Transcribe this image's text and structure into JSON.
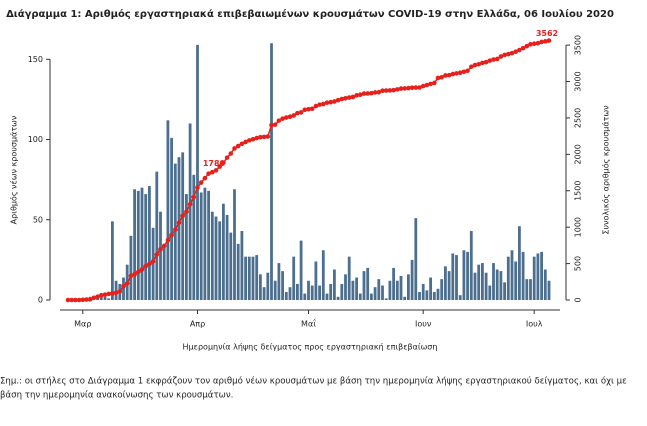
{
  "chart_data": {
    "type": "bar-line",
    "title": "Διάγραμμα 1: Αριθμός εργαστηριακά επιβεβαιωμένων κρουσμάτων COVID-19 στην Ελλάδα, 06 Ιουλίου 2020",
    "x_label": "Ημερομηνία λήψης δείγματος προς εργαστηριακή επιβεβαίωση",
    "y_label": "Αριθμός νέων κρουσμάτων",
    "y2_label": "Συνολικός αριθμός κρουσμάτων",
    "categories": [
      null,
      null,
      null,
      null,
      "Μαρ",
      null,
      null,
      null,
      null,
      null,
      null,
      null,
      null,
      null,
      null,
      null,
      null,
      null,
      null,
      null,
      null,
      null,
      null,
      null,
      null,
      null,
      null,
      null,
      null,
      null,
      null,
      null,
      null,
      null,
      null,
      "Απρ",
      null,
      null,
      null,
      null,
      null,
      null,
      null,
      null,
      null,
      null,
      null,
      null,
      null,
      null,
      null,
      null,
      null,
      null,
      null,
      null,
      null,
      null,
      null,
      null,
      null,
      null,
      null,
      null,
      null,
      "Μαΐ",
      null,
      null,
      null,
      null,
      null,
      null,
      null,
      null,
      null,
      null,
      null,
      null,
      null,
      null,
      null,
      null,
      null,
      null,
      null,
      null,
      null,
      null,
      null,
      null,
      null,
      null,
      null,
      null,
      null,
      null,
      "Ιουν",
      null,
      null,
      null,
      null,
      null,
      null,
      null,
      null,
      null,
      null,
      null,
      null,
      null,
      null,
      null,
      null,
      null,
      null,
      null,
      null,
      null,
      null,
      null,
      null,
      null,
      null,
      null,
      null,
      null,
      "Ιουλ",
      null,
      null,
      null,
      null
    ],
    "ylim": [
      0,
      167
    ],
    "yticks": [
      0,
      50,
      100,
      150
    ],
    "y2lim": [
      0,
      3680
    ],
    "y2ticks": [
      0,
      500,
      1000,
      1500,
      2000,
      2500,
      3000,
      3500
    ],
    "series": [
      {
        "type": "bar",
        "color": "#4d6f8f",
        "values": [
          0,
          0,
          1,
          1,
          1,
          1,
          2,
          1,
          3,
          3,
          2,
          1,
          49,
          12,
          10,
          14,
          22,
          40,
          69,
          68,
          70,
          66,
          71,
          45,
          80,
          55,
          35,
          112,
          101,
          85,
          89,
          92,
          66,
          110,
          78,
          159,
          67,
          70,
          68,
          55,
          52,
          49,
          60,
          53,
          42,
          69,
          35,
          43,
          27,
          27,
          27,
          28,
          16,
          8,
          17,
          160,
          12,
          23,
          18,
          5,
          8,
          27,
          10,
          37,
          4,
          12,
          9,
          24,
          9,
          31,
          4,
          10,
          19,
          2,
          10,
          16,
          27,
          12,
          14,
          4,
          18,
          20,
          4,
          8,
          13,
          9,
          1,
          12,
          20,
          12,
          15,
          2,
          16,
          25,
          51,
          5,
          10,
          6,
          14,
          5,
          7,
          13,
          21,
          18,
          29,
          28,
          3,
          31,
          30,
          43,
          17,
          22,
          23,
          17,
          9,
          23,
          19,
          18,
          11,
          27,
          31,
          24,
          46,
          30,
          13,
          13,
          27,
          29,
          30,
          19,
          12
        ]
      },
      {
        "type": "line",
        "axis": "y2",
        "color": "#e8201c",
        "values": [
          0,
          0,
          0,
          0,
          3,
          7,
          9,
          31,
          45,
          66,
          73,
          84,
          89,
          99,
          117,
          190,
          228,
          331,
          352,
          387,
          418,
          464,
          495,
          530,
          624,
          695,
          743,
          821,
          892,
          966,
          1061,
          1156,
          1212,
          1314,
          1415,
          1544,
          1613,
          1673,
          1735,
          1755,
          1780,
          1832,
          1884,
          1955,
          2011,
          2081,
          2114,
          2145,
          2170,
          2192,
          2207,
          2224,
          2235,
          2240,
          2245,
          2401,
          2408,
          2463,
          2490,
          2506,
          2517,
          2534,
          2566,
          2576,
          2612,
          2620,
          2626,
          2663,
          2682,
          2691,
          2710,
          2716,
          2726,
          2744,
          2760,
          2770,
          2780,
          2788,
          2810,
          2819,
          2834,
          2836,
          2840,
          2850,
          2853,
          2874,
          2876,
          2878,
          2882,
          2892,
          2903,
          2906,
          2909,
          2915,
          2917,
          2918,
          2937,
          2952,
          2967,
          2980,
          3049,
          3058,
          3083,
          3088,
          3102,
          3112,
          3121,
          3134,
          3148,
          3203,
          3227,
          3237,
          3256,
          3266,
          3287,
          3302,
          3310,
          3343,
          3366,
          3376,
          3390,
          3409,
          3432,
          3458,
          3486,
          3511,
          3519,
          3526,
          3543,
          3552,
          3562
        ],
        "value_labels": [
          null,
          null,
          null,
          null,
          null,
          null,
          null,
          null,
          null,
          null,
          null,
          null,
          null,
          null,
          null,
          null,
          null,
          null,
          null,
          null,
          null,
          null,
          null,
          null,
          null,
          null,
          null,
          null,
          null,
          null,
          null,
          null,
          null,
          null,
          null,
          null,
          null,
          null,
          null,
          null,
          "1780",
          null,
          null,
          null,
          null,
          null,
          null,
          null,
          null,
          null,
          null,
          null,
          null,
          null,
          null,
          null,
          null,
          null,
          null,
          null,
          null,
          null,
          null,
          null,
          null,
          null,
          null,
          null,
          null,
          null,
          null,
          null,
          null,
          null,
          null,
          null,
          null,
          null,
          null,
          null,
          null,
          null,
          null,
          null,
          null,
          null,
          null,
          null,
          null,
          null,
          null,
          null,
          null,
          null,
          null,
          null,
          null,
          null,
          null,
          null,
          null,
          null,
          null,
          null,
          null,
          null,
          null,
          null,
          null,
          null,
          null,
          null,
          null,
          null,
          null,
          null,
          null,
          null,
          null,
          null,
          null,
          null,
          null,
          null,
          null,
          null,
          null,
          null,
          null,
          null,
          "3562"
        ]
      }
    ],
    "note": [
      "Σημ.: οι στήλες στο Διάγραμμα 1 εκφράζουν τον αριθμό νέων κρουσμάτων με βάση την ημερομηνία λήψης εργαστηριακού δείγματος, και όχι με",
      "βάση την ημερομηνία ανακοίνωσης των κρουσμάτων."
    ]
  }
}
